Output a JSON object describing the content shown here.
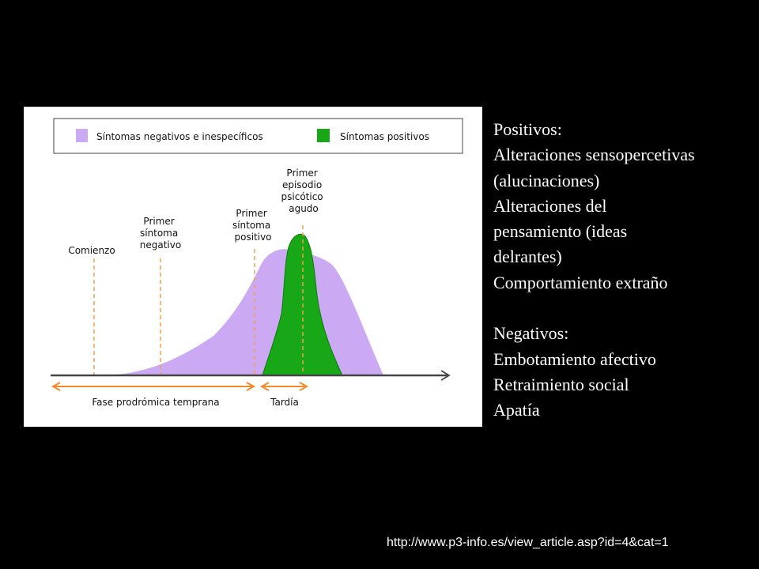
{
  "figure": {
    "legend": {
      "negative_label": "Síntomas negativos e inespecíficos",
      "positive_label": "Síntomas positivos"
    },
    "markers": {
      "comienzo": [
        "Comienzo"
      ],
      "primer_negativo": [
        "Primer",
        "síntoma",
        "negativo"
      ],
      "primer_positivo": [
        "Primer",
        "síntoma",
        "positivo"
      ],
      "primer_episodio": [
        "Primer",
        "episodio",
        "psicótico",
        "agudo"
      ]
    },
    "phases": {
      "early": "Fase prodrómica temprana",
      "late": "Tardía"
    },
    "colors": {
      "negative_fill": "#cbaaf3",
      "positive_fill": "#17a717",
      "marker_line": "#f0a050",
      "phase_arrow": "#f08a2a"
    }
  },
  "side_text": {
    "positivos_heading": "Positivos:",
    "positivos_items": [
      "Alteraciones sensopercetivas",
      "(alucinaciones)",
      "Alteraciones del",
      "pensamiento (ideas",
      "delrantes)",
      "Comportamiento extraño"
    ],
    "negativos_heading": "Negativos:",
    "negativos_items": [
      "Embotamiento afectivo",
      "Retraimiento social",
      "Apatía"
    ]
  },
  "source_url": "http://www.p3-info.es/view_article.asp?id=4&cat=1"
}
